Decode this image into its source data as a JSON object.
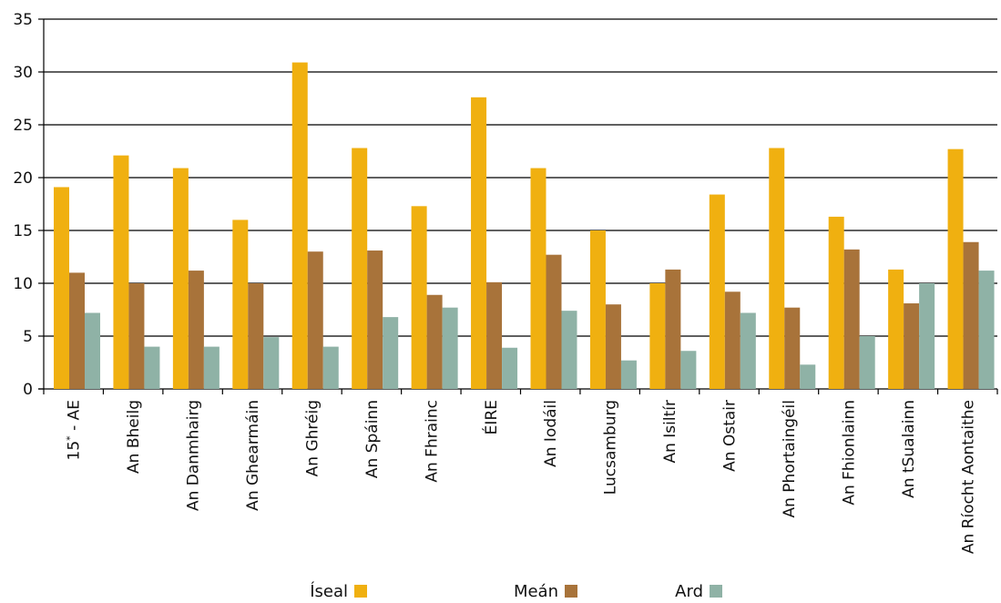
{
  "chart_data": {
    "type": "bar",
    "title": "",
    "xlabel": "",
    "ylabel": "",
    "ylim": [
      0,
      35
    ],
    "yticks": [
      0,
      5,
      10,
      15,
      20,
      25,
      30,
      35
    ],
    "ytick_labels": [
      "0",
      "5",
      "10",
      "15",
      "20",
      "25",
      "30",
      "35"
    ],
    "grid": true,
    "legend_position": "bottom",
    "categories": [
      "15* - AE",
      "An Bheilg",
      "An Danmhairg",
      "An Ghearmáin",
      "An Ghréig",
      "An Spáinn",
      "An Fhrainc",
      "ÉIRE",
      "An Iodáil",
      "Lucsamburg",
      "An Isiltír",
      "An Ostair",
      "An Phortaingéil",
      "An Fhionlainn",
      "An tSualainn",
      "An Ríocht Aontaithe"
    ],
    "series": [
      {
        "name": "Íseal",
        "color": "#F0B010",
        "values": [
          19.1,
          22.1,
          20.9,
          16.0,
          30.9,
          22.8,
          17.3,
          27.6,
          20.9,
          15.0,
          10.0,
          18.4,
          22.8,
          16.3,
          11.3,
          22.7
        ]
      },
      {
        "name": "Meán",
        "color": "#A8733A",
        "values": [
          11.0,
          10.0,
          11.2,
          10.0,
          13.0,
          13.1,
          8.9,
          10.1,
          12.7,
          8.0,
          11.3,
          9.2,
          7.7,
          13.2,
          8.1,
          13.9
        ]
      },
      {
        "name": "Ard",
        "color": "#8FB2A6",
        "values": [
          7.2,
          4.0,
          4.0,
          4.9,
          4.0,
          6.8,
          7.7,
          3.9,
          7.4,
          2.7,
          3.6,
          7.2,
          2.3,
          5.0,
          10.0,
          11.2
        ]
      }
    ]
  }
}
